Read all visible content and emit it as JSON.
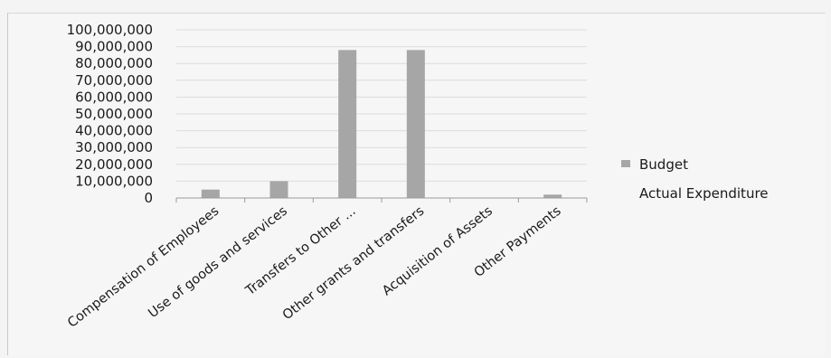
{
  "chart_data": {
    "type": "bar",
    "title": "",
    "xlabel": "",
    "ylabel": "",
    "ylim": [
      0,
      100000000
    ],
    "y_ticks": [
      0,
      10000000,
      20000000,
      30000000,
      40000000,
      50000000,
      60000000,
      70000000,
      80000000,
      90000000,
      100000000
    ],
    "y_tick_labels": [
      "0",
      "10,000,000",
      "20,000,000",
      "30,000,000",
      "40,000,000",
      "50,000,000",
      "60,000,000",
      "70,000,000",
      "80,000,000",
      "90,000,000",
      "100,000,000"
    ],
    "categories": [
      "Compensation of Employees",
      "Use of goods and services",
      "Transfers to Other ...",
      "Other grants and transfers",
      "Acquisition of Assets",
      "Other Payments"
    ],
    "series": [
      {
        "name": "Budget",
        "color": "#a6a6a6",
        "values": [
          5000000,
          10000000,
          88000000,
          88000000,
          0,
          2000000
        ]
      },
      {
        "name": "Actual Expenditure",
        "color": "#f6f6f6",
        "values": [
          0,
          0,
          0,
          0,
          0,
          0
        ]
      }
    ],
    "grid": true,
    "legend": "right"
  }
}
